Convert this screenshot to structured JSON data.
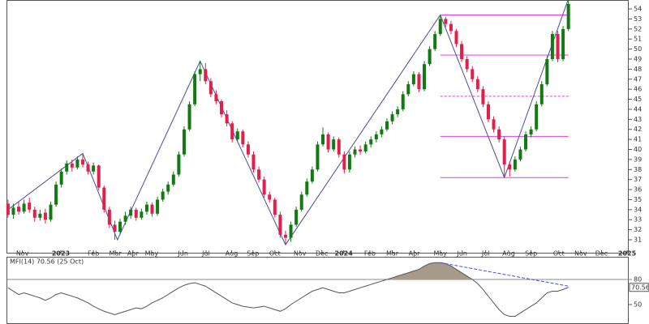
{
  "chart_data": [
    {
      "type": "candlestick",
      "up_color": "#137a13",
      "down_color": "#e0204a",
      "xlim": [
        -1.5,
        116.3
      ],
      "xticks": [
        {
          "value": 2.7,
          "label": "Nov"
        },
        {
          "value": 9.9,
          "label": "2023"
        },
        {
          "value": 16,
          "label": "Feb"
        },
        {
          "value": 20.1,
          "label": "Mar"
        },
        {
          "value": 23.4,
          "label": "Apr"
        },
        {
          "value": 26.9,
          "label": "May"
        },
        {
          "value": 32.8,
          "label": "Jun"
        },
        {
          "value": 37.1,
          "label": "Jul"
        },
        {
          "value": 41.9,
          "label": "Aug"
        },
        {
          "value": 45.9,
          "label": "Sep"
        },
        {
          "value": 50,
          "label": "Oct"
        },
        {
          "value": 54.7,
          "label": "Nov"
        },
        {
          "value": 58.8,
          "label": "Dec"
        },
        {
          "value": 62.9,
          "label": "2024"
        },
        {
          "value": 67.8,
          "label": "Feb"
        },
        {
          "value": 72,
          "label": "Mar"
        },
        {
          "value": 76.1,
          "label": "Apr"
        },
        {
          "value": 81,
          "label": "May"
        },
        {
          "value": 85.1,
          "label": "Jun"
        },
        {
          "value": 89.5,
          "label": "Jul"
        },
        {
          "value": 93.8,
          "label": "Aug"
        },
        {
          "value": 98,
          "label": "Sep"
        },
        {
          "value": 103.2,
          "label": "Oct"
        },
        {
          "value": 107.3,
          "label": "Nov"
        },
        {
          "value": 111.2,
          "label": "Dec"
        },
        {
          "value": 116,
          "label": "2025"
        }
      ],
      "ylim": [
        29.71,
        54.89
      ],
      "yticks": [
        31,
        32,
        33,
        34,
        35,
        36,
        37,
        38,
        39,
        40,
        41,
        42,
        43,
        44,
        45,
        46,
        47,
        48,
        49,
        50,
        51,
        52,
        53,
        54
      ],
      "ohlc": [
        [
          34.6,
          35.0,
          33.2,
          33.5
        ],
        [
          33.5,
          34.6,
          33.1,
          34.2
        ],
        [
          34.3,
          34.8,
          33.5,
          33.8
        ],
        [
          33.8,
          35.0,
          33.6,
          34.6
        ],
        [
          34.7,
          35.2,
          33.7,
          34.0
        ],
        [
          34.0,
          34.3,
          32.8,
          33.2
        ],
        [
          33.2,
          34.0,
          32.9,
          33.6
        ],
        [
          33.7,
          34.1,
          32.6,
          33.0
        ],
        [
          33.0,
          34.8,
          32.8,
          34.5
        ],
        [
          34.5,
          36.8,
          34.3,
          36.5
        ],
        [
          36.5,
          38.1,
          36.2,
          37.8
        ],
        [
          37.8,
          38.9,
          37.5,
          38.6
        ],
        [
          38.6,
          39.0,
          37.8,
          38.2
        ],
        [
          38.2,
          39.3,
          38.0,
          39.0
        ],
        [
          39.0,
          39.6,
          38.2,
          38.5
        ],
        [
          38.5,
          38.8,
          37.5,
          37.8
        ],
        [
          37.8,
          38.7,
          37.5,
          38.4
        ],
        [
          38.4,
          38.5,
          35.9,
          36.2
        ],
        [
          36.2,
          36.4,
          33.7,
          34.0
        ],
        [
          34.0,
          34.3,
          32.2,
          32.5
        ],
        [
          32.5,
          32.9,
          31.0,
          31.8
        ],
        [
          31.8,
          33.1,
          31.5,
          32.8
        ],
        [
          32.8,
          33.8,
          32.5,
          33.4
        ],
        [
          33.4,
          34.3,
          33.1,
          34.0
        ],
        [
          34.0,
          34.2,
          32.9,
          33.2
        ],
        [
          33.2,
          34.1,
          33.0,
          33.8
        ],
        [
          33.8,
          34.8,
          33.5,
          34.5
        ],
        [
          34.5,
          34.7,
          33.3,
          33.6
        ],
        [
          33.6,
          35.3,
          33.4,
          35.0
        ],
        [
          35.0,
          36.1,
          34.8,
          35.8
        ],
        [
          35.8,
          36.8,
          35.5,
          36.5
        ],
        [
          36.5,
          37.8,
          36.3,
          37.5
        ],
        [
          37.5,
          39.8,
          37.3,
          39.5
        ],
        [
          39.5,
          42.3,
          39.3,
          42.0
        ],
        [
          42.0,
          44.8,
          41.8,
          44.5
        ],
        [
          44.5,
          47.8,
          44.3,
          47.5
        ],
        [
          47.5,
          48.8,
          46.8,
          48.0
        ],
        [
          48.0,
          48.6,
          46.5,
          46.8
        ],
        [
          46.8,
          47.1,
          45.2,
          45.5
        ],
        [
          45.5,
          45.9,
          44.5,
          44.8
        ],
        [
          44.8,
          45.0,
          43.2,
          43.5
        ],
        [
          43.5,
          43.9,
          42.3,
          42.6
        ],
        [
          42.6,
          42.8,
          40.7,
          41.0
        ],
        [
          41.0,
          42.1,
          40.8,
          41.8
        ],
        [
          41.8,
          42.0,
          40.2,
          40.5
        ],
        [
          40.5,
          40.8,
          39.2,
          39.5
        ],
        [
          39.5,
          39.8,
          37.7,
          38.0
        ],
        [
          38.0,
          38.3,
          36.7,
          37.0
        ],
        [
          37.0,
          37.3,
          35.2,
          35.5
        ],
        [
          35.5,
          35.8,
          34.7,
          35.0
        ],
        [
          35.0,
          35.2,
          33.2,
          33.5
        ],
        [
          33.5,
          33.8,
          31.2,
          31.5
        ],
        [
          31.5,
          31.9,
          30.5,
          31.2
        ],
        [
          31.2,
          32.8,
          30.8,
          32.5
        ],
        [
          32.5,
          34.3,
          32.3,
          34.0
        ],
        [
          34.0,
          35.8,
          33.8,
          35.5
        ],
        [
          35.5,
          37.1,
          35.3,
          36.8
        ],
        [
          36.8,
          38.3,
          36.6,
          38.0
        ],
        [
          38.0,
          40.8,
          37.8,
          40.5
        ],
        [
          40.5,
          42.2,
          40.3,
          41.5
        ],
        [
          41.5,
          41.7,
          39.7,
          40.0
        ],
        [
          40.0,
          41.3,
          39.8,
          41.0
        ],
        [
          41.0,
          41.2,
          39.2,
          39.5
        ],
        [
          39.5,
          39.8,
          37.6,
          38.0
        ],
        [
          38.0,
          39.8,
          37.7,
          39.5
        ],
        [
          39.5,
          40.3,
          39.2,
          40.0
        ],
        [
          40.0,
          40.4,
          39.5,
          39.8
        ],
        [
          39.8,
          40.8,
          39.6,
          40.5
        ],
        [
          40.5,
          41.3,
          40.2,
          41.0
        ],
        [
          41.0,
          41.8,
          40.7,
          41.5
        ],
        [
          41.5,
          42.3,
          41.2,
          42.0
        ],
        [
          42.0,
          43.1,
          41.8,
          42.8
        ],
        [
          42.8,
          43.8,
          42.5,
          43.5
        ],
        [
          43.5,
          44.3,
          43.2,
          44.0
        ],
        [
          44.0,
          45.8,
          43.8,
          45.5
        ],
        [
          45.5,
          46.8,
          45.3,
          46.5
        ],
        [
          46.5,
          47.8,
          46.3,
          47.5
        ],
        [
          47.5,
          47.7,
          45.7,
          46.0
        ],
        [
          46.0,
          48.8,
          45.8,
          48.5
        ],
        [
          48.5,
          50.3,
          48.3,
          50.0
        ],
        [
          50.0,
          51.8,
          49.8,
          51.5
        ],
        [
          51.5,
          53.4,
          51.3,
          53.0
        ],
        [
          53.0,
          53.2,
          52.2,
          52.5
        ],
        [
          52.5,
          52.8,
          51.5,
          51.8
        ],
        [
          51.8,
          52.0,
          50.2,
          50.5
        ],
        [
          50.5,
          50.8,
          48.7,
          49.0
        ],
        [
          49.0,
          49.3,
          47.7,
          48.0
        ],
        [
          48.0,
          48.3,
          46.7,
          47.0
        ],
        [
          47.0,
          47.3,
          45.7,
          46.0
        ],
        [
          46.0,
          46.3,
          44.2,
          44.5
        ],
        [
          44.5,
          44.8,
          42.7,
          43.0
        ],
        [
          43.0,
          43.3,
          41.7,
          42.0
        ],
        [
          42.0,
          42.3,
          40.7,
          41.0
        ],
        [
          41.0,
          41.3,
          37.2,
          38.5
        ],
        [
          38.5,
          38.8,
          37.3,
          38.0
        ],
        [
          38.0,
          39.3,
          37.8,
          39.0
        ],
        [
          39.0,
          40.3,
          38.8,
          40.0
        ],
        [
          40.0,
          41.8,
          39.8,
          41.5
        ],
        [
          41.5,
          42.3,
          41.2,
          42.0
        ],
        [
          42.0,
          44.8,
          41.8,
          44.5
        ],
        [
          44.5,
          46.8,
          44.3,
          46.5
        ],
        [
          46.5,
          49.3,
          46.3,
          49.0
        ],
        [
          49.0,
          51.8,
          48.8,
          51.5
        ],
        [
          51.5,
          51.8,
          48.7,
          49.0
        ],
        [
          49.0,
          52.3,
          48.8,
          52.0
        ],
        [
          52.0,
          55.0,
          51.8,
          54.5
        ]
      ],
      "zigzag": {
        "color": "#4a4aa0",
        "x": [
          0,
          14,
          20.5,
          36,
          52,
          81,
          93,
          105
        ],
        "values": [
          34,
          39.6,
          31,
          48.8,
          30.5,
          53.4,
          37.2,
          55
        ]
      },
      "fib": {
        "color": "#e040e0",
        "x": [
          81,
          105
        ],
        "levels": [
          53.4,
          49.4,
          45.3,
          41.3,
          37.2
        ],
        "styles": [
          "solid",
          "solid",
          "dashed",
          "solid",
          "solid"
        ]
      }
    },
    {
      "type": "line",
      "title": "MFI(14) 70.56 (25 Oct)",
      "color": "#555555",
      "fill_color": "#a89a8a",
      "ylim": [
        26.8,
        106.1
      ],
      "yticks": [
        80,
        50
      ],
      "xlim": [
        -1.5,
        116.3
      ],
      "values": [
        70,
        66,
        62,
        64,
        62,
        60,
        58,
        55,
        58,
        62,
        64,
        62,
        60,
        58,
        55,
        52,
        48,
        45,
        42,
        40,
        38,
        40,
        42,
        44,
        46,
        45,
        48,
        52,
        55,
        58,
        62,
        66,
        70,
        73,
        75,
        76,
        74,
        72,
        68,
        64,
        60,
        56,
        52,
        50,
        48,
        47,
        46,
        47,
        48,
        46,
        44,
        42,
        45,
        50,
        54,
        58,
        62,
        66,
        68,
        70,
        68,
        66,
        64,
        64,
        66,
        68,
        70,
        72,
        74,
        76,
        78,
        80,
        82,
        84,
        86,
        88,
        90,
        92,
        96,
        99,
        100,
        100,
        99,
        96,
        92,
        88,
        84,
        80,
        75,
        68,
        60,
        52,
        44,
        38,
        36,
        36,
        40,
        44,
        48,
        52,
        58,
        64,
        66,
        66,
        68,
        70.56
      ],
      "last_value_label": "70.56",
      "trend": {
        "color": "#4a4ae0",
        "x": [
          81,
          105
        ],
        "values": [
          100,
          72
        ]
      }
    }
  ]
}
